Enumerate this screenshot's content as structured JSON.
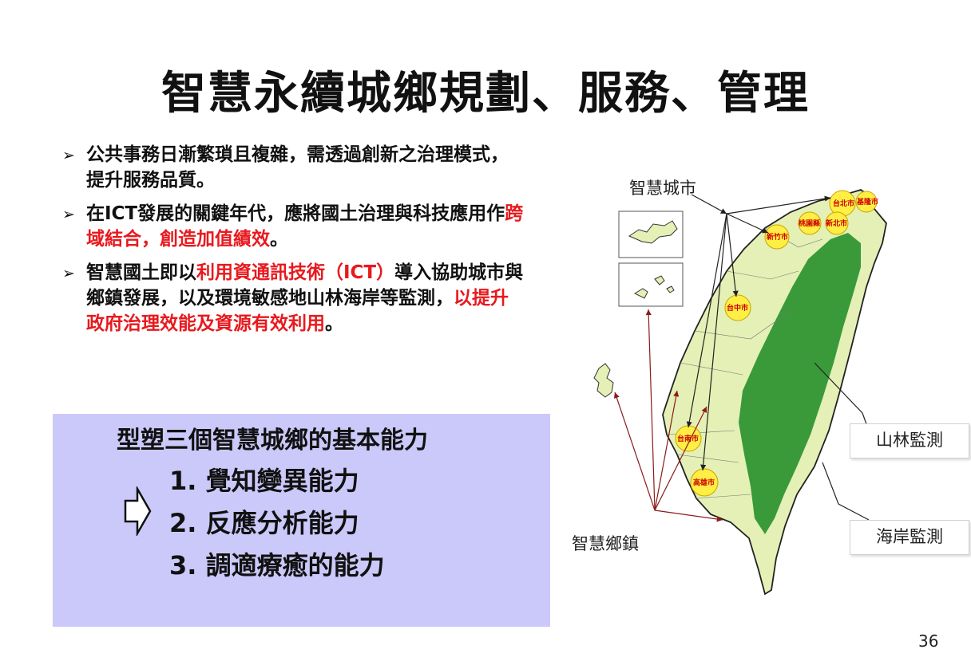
{
  "title": "智慧永續城鄉規劃、服務、管理",
  "bullets": [
    {
      "parts": [
        {
          "text": "公共事務日漸繁瑣且複雜，需透過創新之治理模式，提升服務品質。",
          "red": false
        }
      ]
    },
    {
      "parts": [
        {
          "text": "在ICT發展的關鍵年代，應將國土治理與科技應用作",
          "red": false
        },
        {
          "text": "跨域結合，創造加值績效",
          "red": true
        },
        {
          "text": "。",
          "red": false
        }
      ]
    },
    {
      "parts": [
        {
          "text": "智慧國土即以",
          "red": false
        },
        {
          "text": "利用資通訊技術（ICT）",
          "red": true
        },
        {
          "text": "導入協助城市與鄉鎮發展，以及環境敏感地山林海岸等監測，",
          "red": false
        },
        {
          "text": "以提升政府治理效能及資源有效利用",
          "red": true
        },
        {
          "text": "。",
          "red": false
        }
      ]
    }
  ],
  "capability_box": {
    "title": "型塑三個智慧城鄉的基本能力",
    "items": [
      "1.  覺知變異能力",
      "2.  反應分析能力",
      "3.  調適療癒的能力"
    ],
    "background": "#cbc9fa"
  },
  "map": {
    "label_smart_city": "智慧城市",
    "label_smart_town": "智慧鄉鎮",
    "callout_forest": "山林監測",
    "callout_coast": "海岸監測",
    "cities": [
      "台北市",
      "基隆市",
      "桃園縣",
      "新北市",
      "新竹市",
      "台中市",
      "台南市",
      "高雄市"
    ],
    "colors": {
      "land": "#e4f0b5",
      "mountain": "#3a9a3a",
      "city": "#ffee44",
      "arrow": "#8b1a1a"
    }
  },
  "page_number": "36"
}
